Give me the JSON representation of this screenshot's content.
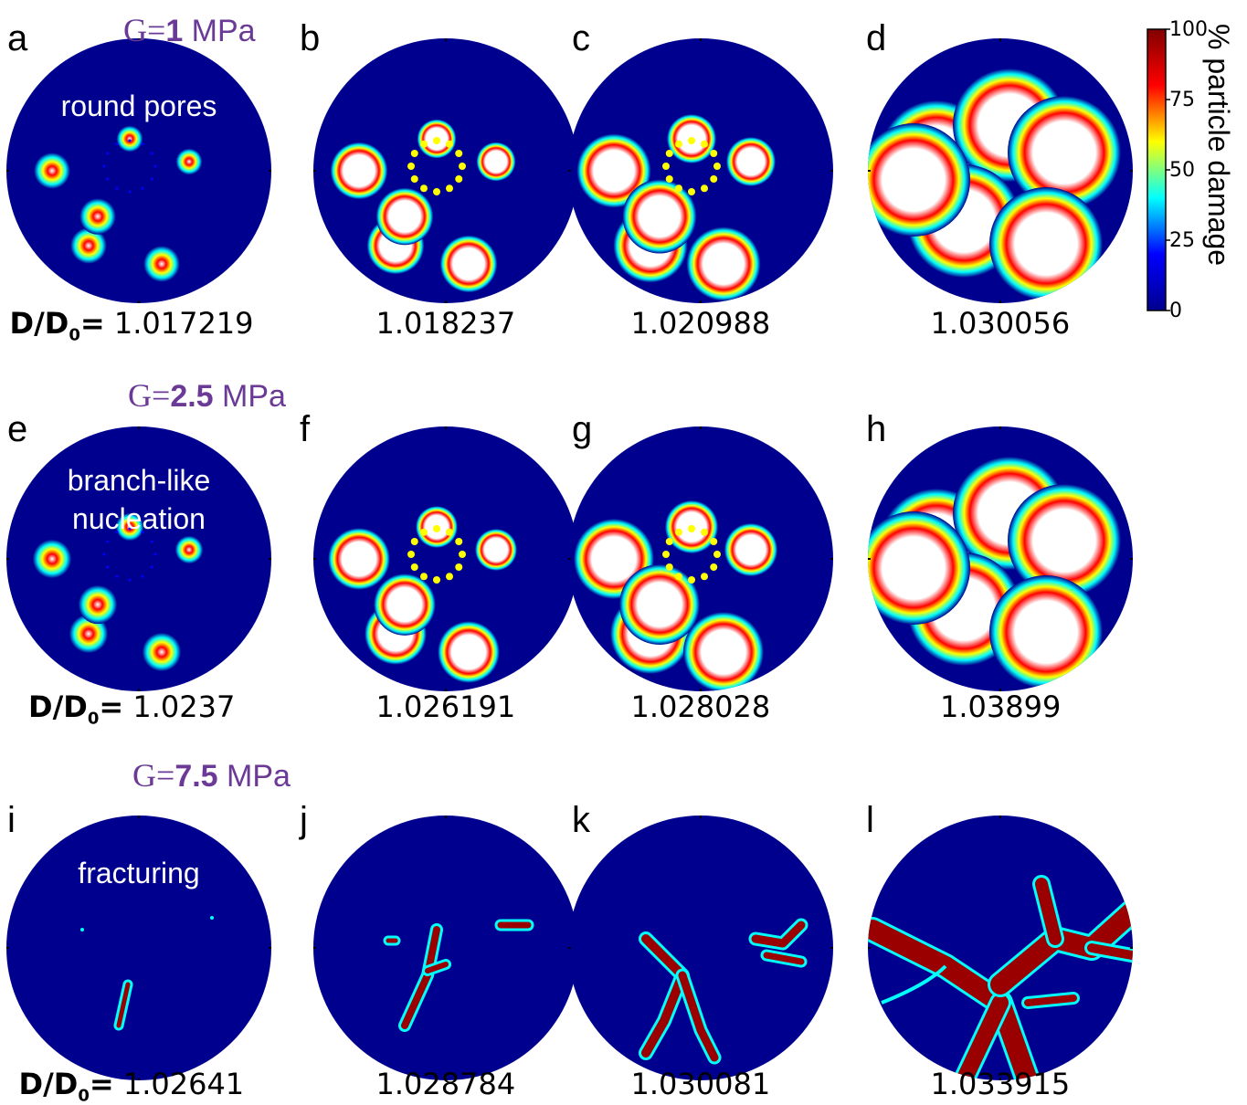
{
  "rows": [
    {
      "g_prefix": "G=",
      "g_value": "1",
      "g_unit": " MPa",
      "annotation_lines": [
        "round pores"
      ],
      "panels": [
        {
          "letter": "a",
          "value": "1.017219",
          "show_label": true
        },
        {
          "letter": "b",
          "value": "1.018237",
          "show_label": false
        },
        {
          "letter": "c",
          "value": "1.020988",
          "show_label": false
        },
        {
          "letter": "d",
          "value": "1.030056",
          "show_label": false
        }
      ]
    },
    {
      "g_prefix": "G=",
      "g_value": "2.5",
      "g_unit": " MPa",
      "annotation_lines": [
        "branch-like",
        "nucleation"
      ],
      "panels": [
        {
          "letter": "e",
          "value": "1.0237",
          "show_label": true
        },
        {
          "letter": "f",
          "value": "1.026191",
          "show_label": false
        },
        {
          "letter": "g",
          "value": "1.028028",
          "show_label": false
        },
        {
          "letter": "h",
          "value": "1.03899",
          "show_label": false
        }
      ]
    },
    {
      "g_prefix": "G=",
      "g_value": "7.5",
      "g_unit": "  MPa",
      "annotation_lines": [
        "fracturing"
      ],
      "panels": [
        {
          "letter": "i",
          "value": "1.02641",
          "show_label": true
        },
        {
          "letter": "j",
          "value": "1.028784",
          "show_label": false
        },
        {
          "letter": "k",
          "value": "1.030081",
          "show_label": false
        },
        {
          "letter": "l",
          "value": "1.033915",
          "show_label": false
        }
      ]
    }
  ],
  "ratio_label": {
    "main": "D/D",
    "sub": "0",
    "suffix": "="
  },
  "colorbar": {
    "title": "% particle damage",
    "ticks": [
      "0",
      "25",
      "50",
      "75",
      "100"
    ],
    "range": [
      0,
      100
    ],
    "colormap": "jet",
    "colors": [
      "#00008f",
      "#0000ff",
      "#00ffff",
      "#ffff00",
      "#ff0000",
      "#800000"
    ]
  },
  "disc_colors": {
    "background": "#00008f",
    "damage_core": "#ffffff",
    "fracture": "#9a0000"
  }
}
